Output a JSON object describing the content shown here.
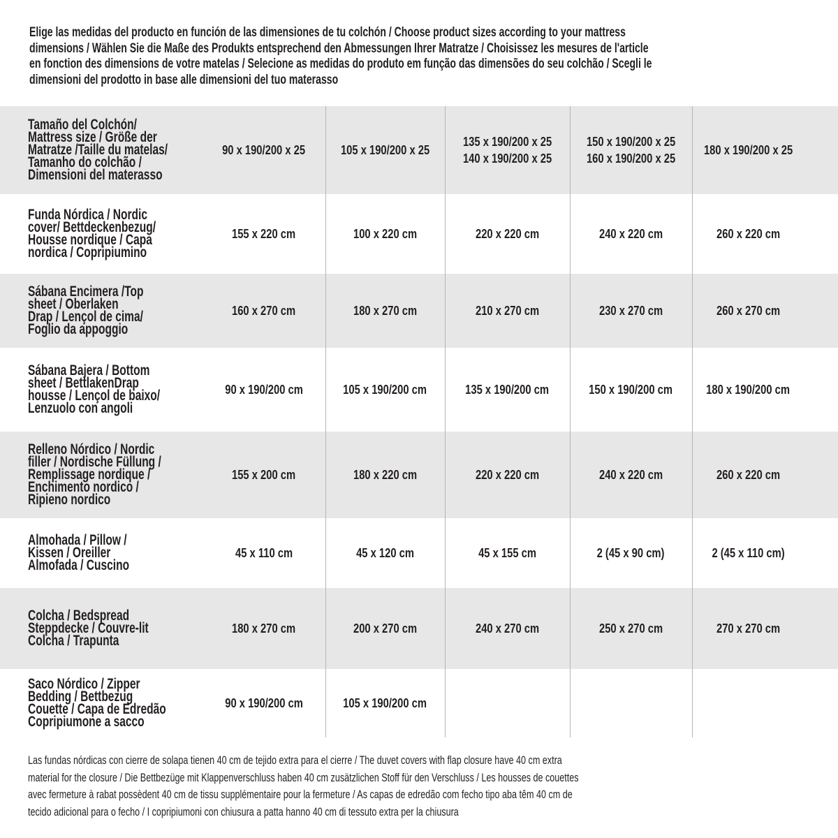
{
  "title_lines": [
    "Elige las medidas del producto en función de las dimensiones de tu colchón / Choose product sizes according to your mattress",
    "dimensions / Wählen Sie die Maße des Produkts entsprechend den Abmessungen Ihrer Matratze / Choisissez les mesures de l'article",
    "en fonction des dimensions de votre matelas / Selecione as medidas do produto em função das dimensões do seu colchão / Scegli le",
    "dimensioni del prodotto in base alle dimensioni del tuo materasso"
  ],
  "rows": [
    {
      "label": [
        "Tamaño del Colchón/",
        "Mattress size / Größe der",
        "Matratze /Taille du matelas/",
        "Tamanho do colchão /",
        "Dimensioni del materasso"
      ],
      "values": [
        [
          "90 x 190/200 x 25"
        ],
        [
          "105 x 190/200 x 25"
        ],
        [
          "135 x 190/200 x 25",
          "140 x 190/200 x 25"
        ],
        [
          "150 x 190/200 x 25",
          "160 x 190/200 x 25"
        ],
        [
          "180 x 190/200 x 25"
        ]
      ]
    },
    {
      "label": [
        "Funda Nórdica /   Nordic",
        "cover/ Bettdeckenbezug/",
        "Housse nordique  / Capa",
        "nordica / Copripiumino"
      ],
      "values": [
        [
          "155 x 220 cm"
        ],
        [
          "100 x 220 cm"
        ],
        [
          "220 x 220 cm"
        ],
        [
          "240 x 220 cm"
        ],
        [
          "260 x 220 cm"
        ]
      ]
    },
    {
      "label": [
        "Sábana Encimera /Top",
        "sheet / Oberlaken",
        "Drap / Lençol de cima/",
        "Foglio da appoggio"
      ],
      "values": [
        [
          "160 x 270 cm"
        ],
        [
          "180 x 270 cm"
        ],
        [
          "210 x 270 cm"
        ],
        [
          "230 x 270 cm"
        ],
        [
          "260 x 270 cm"
        ]
      ]
    },
    {
      "label": [
        "Sábana Bajera / Bottom",
        "sheet / BettlakenDrap",
        "housse / Lençol de baixo/",
        "Lenzuolo con angoli"
      ],
      "values": [
        [
          "90 x 190/200 cm"
        ],
        [
          "105 x 190/200 cm"
        ],
        [
          "135 x 190/200 cm"
        ],
        [
          "150 x 190/200 cm"
        ],
        [
          "180 x 190/200 cm"
        ]
      ]
    },
    {
      "label": [
        "Relleno Nórdico / Nordic",
        "filler / Nordische Füllung /",
        "Remplissage nordique /",
        "Enchimento nordico /",
        "Ripieno nordico"
      ],
      "values": [
        [
          "155 x 200 cm"
        ],
        [
          "180 x 220 cm"
        ],
        [
          "220 x 220 cm"
        ],
        [
          "240 x 220 cm"
        ],
        [
          "260 x 220 cm"
        ]
      ]
    },
    {
      "label": [
        "Almohada  / Pillow /",
        "Kissen / Oreiller",
        "Almofada / Cuscino"
      ],
      "values": [
        [
          "45 x 110 cm"
        ],
        [
          "45 x 120 cm"
        ],
        [
          "45 x 155 cm"
        ],
        [
          "2 (45 x 90 cm)"
        ],
        [
          "2 (45 x 110 cm)"
        ]
      ]
    },
    {
      "label": [
        "Colcha / Bedspread",
        "Steppdecke / Couvre-lit",
        "Colcha / Trapunta"
      ],
      "values": [
        [
          "180 x 270 cm"
        ],
        [
          "200 x 270 cm"
        ],
        [
          "240 x 270 cm"
        ],
        [
          "250 x 270 cm"
        ],
        [
          "270 x 270 cm"
        ]
      ]
    },
    {
      "label": [
        "Saco Nórdico / Zipper",
        "Bedding / Bettbezug",
        "Couette   / Capa de Edredão",
        "Copripiumone a sacco"
      ],
      "values": [
        [
          "90 x 190/200 cm"
        ],
        [
          "105 x 190/200 cm"
        ],
        [],
        [],
        []
      ]
    }
  ],
  "note_lines": [
    "Las fundas nórdicas con cierre de solapa tienen 40 cm de tejido extra para el cierre   / The duvet covers with flap closure have 40 cm extra",
    "material for the closure / Die Bettbezüge mit Klappenverschluss haben 40 cm zusätzlichen Stoff für den Verschluss / Les housses de couettes",
    "avec fermeture à rabat possèdent 40 cm de tissu supplémentaire pour la fermeture / As capas de edredão com fecho tipo aba têm 40 cm de",
    "tecido adicional para o fecho / I copripiumoni con chiusura a patta hanno 40 cm di tessuto extra per la chiusura"
  ]
}
